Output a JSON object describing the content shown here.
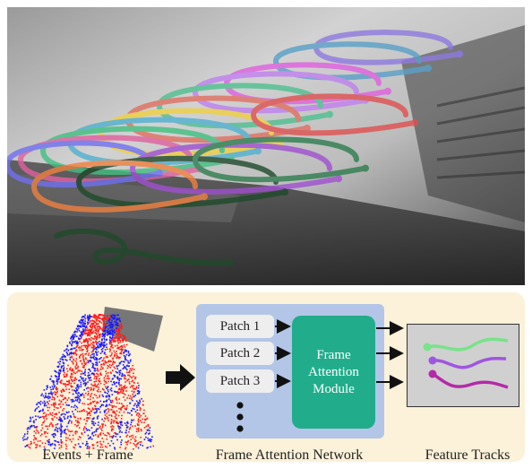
{
  "photo": {
    "scene": "grayscale-event-camera-frame",
    "track_colors": [
      "#8f7ae0",
      "#5aa0c8",
      "#e060e0",
      "#c080f0",
      "#4fc090",
      "#e07060",
      "#f0d040",
      "#50b0d0",
      "#40c080",
      "#e060a0",
      "#7070f0",
      "#a050d0",
      "#1f4a2a",
      "#2e7d4e",
      "#e05050",
      "#f08040"
    ]
  },
  "diagram": {
    "events_caption": "Events + Frame",
    "network_caption": "Frame Attention Network",
    "tracks_caption": "Feature Tracks",
    "patches": [
      "Patch 1",
      "Patch 2",
      "Patch 3"
    ],
    "module_label": "Frame Attention Module",
    "colors": {
      "panel": "#fcf1d9",
      "network_box": "#b3c6e7",
      "module": "#21ad8c",
      "patch": "#eeeeef",
      "tracks_bg": "#d0d0d0",
      "track_green": "#77e38a",
      "track_purple": "#a055e0",
      "track_magenta": "#b42aa8",
      "event_red": "#ff1a1a",
      "event_blue": "#1a1aff"
    }
  }
}
